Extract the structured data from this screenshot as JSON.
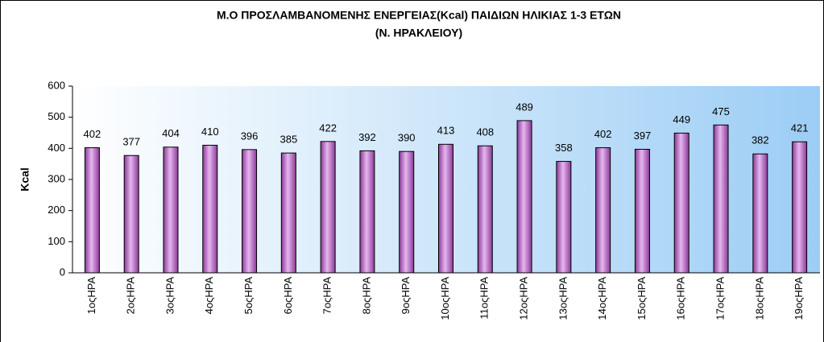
{
  "chart_data": {
    "type": "bar",
    "title": "Μ.Ο ΠΡΟΣΛΑΜΒΑΝΟΜΕΝΗΣ ΕΝΕΡΓΕΙΑΣ(Kcal) ΠΑΙΔΙΩΝ ΗΛΙΚΙΑΣ 1-3 ΕΤΩΝ",
    "subtitle": "(Ν. ΗΡΑΚΛΕΙΟΥ)",
    "y_label": "Kcal",
    "categories": [
      "1οςΗΡΑ",
      "2οςΗΡΑ",
      "3οςΗΡΑ",
      "4οςΗΡΑ",
      "5οςΗΡΑ",
      "6οςΗΡΑ",
      "7οςΗΡΑ",
      "8οςΗΡΑ",
      "9οςΗΡΑ",
      "10οςΗΡΑ",
      "11οςΗΡΑ",
      "12οςΗΡΑ",
      "13οςΗΡΑ",
      "14οςΗΡΑ",
      "15οςΗΡΑ",
      "16οςΗΡΑ",
      "17οςΗΡΑ",
      "18οςΗΡΑ",
      "19οςΗΡΑ"
    ],
    "values": [
      402,
      377,
      404,
      410,
      396,
      385,
      422,
      392,
      390,
      413,
      408,
      489,
      358,
      402,
      397,
      449,
      475,
      382,
      421
    ],
    "color": "#b05fc0",
    "ylim": [
      0,
      600
    ],
    "yticks": [
      0,
      100,
      200,
      300,
      400,
      500,
      600
    ],
    "grid": false
  }
}
